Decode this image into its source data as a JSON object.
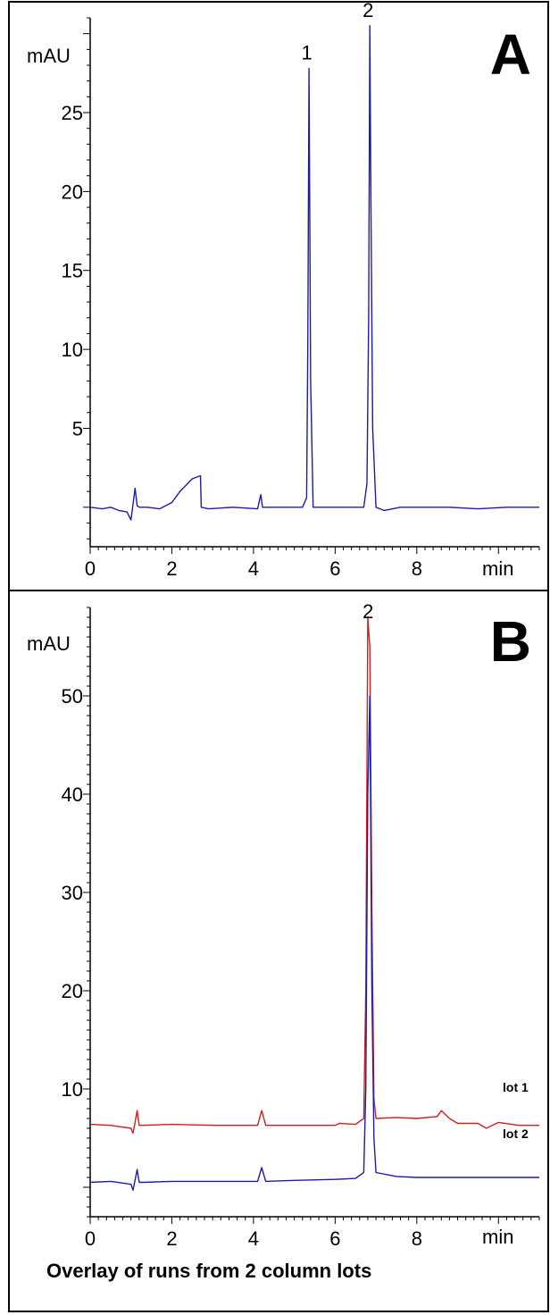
{
  "chart_data": [
    {
      "type": "line",
      "panel": "A",
      "xlabel": "min",
      "ylabel": "mAU",
      "xlim": [
        0,
        11
      ],
      "ylim": [
        -2.5,
        31
      ],
      "xticks": [
        0,
        2,
        4,
        6,
        8
      ],
      "yticks": [
        5,
        10,
        15,
        20,
        25
      ],
      "grid": false,
      "peak_labels": [
        {
          "label": "1",
          "x": 5.35,
          "y": 27.8
        },
        {
          "label": "2",
          "x": 6.85,
          "y": 30.5
        }
      ],
      "series": [
        {
          "color": "#1c1ca8",
          "x": [
            0.0,
            0.3,
            0.5,
            0.7,
            0.9,
            1.0,
            1.05,
            1.1,
            1.15,
            1.2,
            1.4,
            1.7,
            2.0,
            2.2,
            2.5,
            2.7,
            2.72,
            2.9,
            3.5,
            4.1,
            4.18,
            4.22,
            4.3,
            4.8,
            5.2,
            5.3,
            5.33,
            5.36,
            5.4,
            5.46,
            5.6,
            6.2,
            6.7,
            6.78,
            6.82,
            6.85,
            6.88,
            6.92,
            7.0,
            7.2,
            7.6,
            8.2,
            8.8,
            9.5,
            10.2,
            11.0
          ],
          "values": [
            0.0,
            -0.1,
            0.0,
            -0.2,
            -0.3,
            -0.8,
            0.2,
            1.2,
            0.1,
            0.0,
            0.0,
            -0.1,
            0.3,
            1.0,
            1.8,
            2.0,
            0.0,
            -0.1,
            0.0,
            -0.1,
            0.8,
            0.0,
            0.0,
            0.0,
            0.0,
            0.6,
            10.0,
            27.8,
            8.0,
            0.0,
            0.0,
            0.0,
            0.0,
            1.5,
            12.0,
            30.5,
            18.0,
            5.0,
            0.0,
            -0.2,
            0.0,
            0.0,
            0.0,
            -0.1,
            0.0,
            0.0
          ]
        }
      ]
    },
    {
      "type": "line",
      "panel": "B",
      "xlabel": "min",
      "ylabel": "mAU",
      "xlim": [
        0,
        11
      ],
      "ylim": [
        -3,
        59
      ],
      "xticks": [
        0,
        2,
        4,
        6,
        8
      ],
      "yticks": [
        10,
        20,
        30,
        40,
        50
      ],
      "grid": false,
      "caption": "Overlay of runs from 2 column lots",
      "peak_labels": [
        {
          "label": "2",
          "x": 6.85,
          "y": 57
        }
      ],
      "series": [
        {
          "name": "lot 1",
          "color": "#cc1f1f",
          "x": [
            0.0,
            0.5,
            1.0,
            1.05,
            1.15,
            1.2,
            1.3,
            2.0,
            3.0,
            4.1,
            4.2,
            4.3,
            5.0,
            6.0,
            6.1,
            6.5,
            6.7,
            6.75,
            6.8,
            6.85,
            6.9,
            6.95,
            7.0,
            7.5,
            8.0,
            8.5,
            8.6,
            8.8,
            9.0,
            9.5,
            9.7,
            10.0,
            10.5,
            11.0
          ],
          "values": [
            6.4,
            6.3,
            6.0,
            5.5,
            7.8,
            6.3,
            6.3,
            6.4,
            6.3,
            6.3,
            7.8,
            6.3,
            6.3,
            6.3,
            6.5,
            6.4,
            7.0,
            20.0,
            58.0,
            55.0,
            28.0,
            9.0,
            7.0,
            7.1,
            7.0,
            7.2,
            7.8,
            7.0,
            6.5,
            6.5,
            6.0,
            6.6,
            6.3,
            6.3
          ]
        },
        {
          "name": "lot 2",
          "color": "#1c1ca8",
          "x": [
            0.0,
            0.5,
            1.0,
            1.05,
            1.15,
            1.2,
            1.3,
            2.0,
            3.0,
            4.1,
            4.2,
            4.3,
            5.0,
            6.0,
            6.5,
            6.7,
            6.75,
            6.8,
            6.85,
            6.9,
            6.95,
            7.0,
            7.5,
            8.0,
            8.5,
            9.0,
            9.5,
            10.0,
            10.5,
            11.0
          ],
          "values": [
            0.5,
            0.6,
            0.3,
            -0.3,
            1.8,
            0.5,
            0.5,
            0.6,
            0.6,
            0.6,
            2.0,
            0.6,
            0.7,
            0.8,
            0.9,
            1.5,
            10.0,
            40.0,
            50.0,
            20.0,
            5.0,
            1.5,
            1.1,
            1.0,
            1.0,
            1.0,
            1.0,
            1.0,
            1.0,
            1.0
          ]
        }
      ]
    }
  ]
}
